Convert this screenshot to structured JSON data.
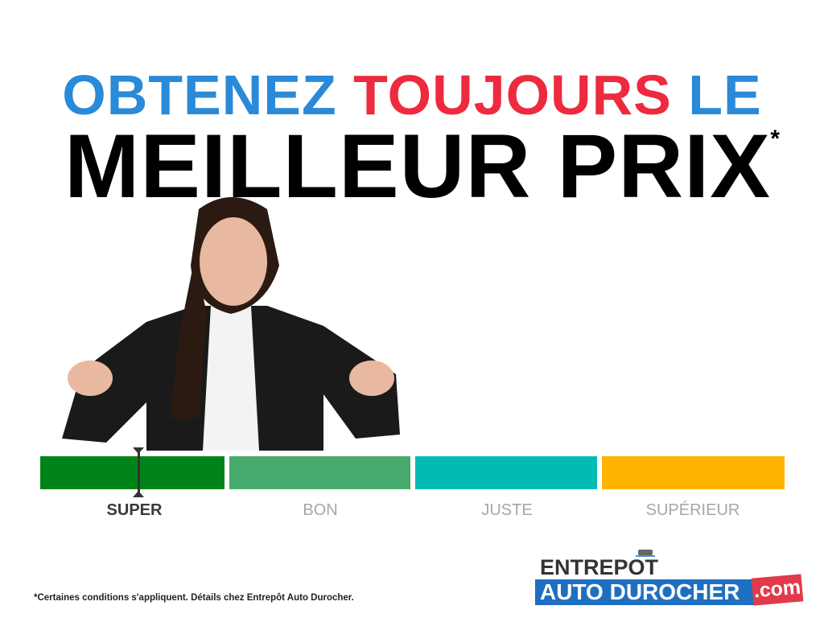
{
  "headline": {
    "line1_part1": "OBTENEZ",
    "line1_part2": "TOUJOURS",
    "line1_part3": "LE",
    "line2": "MEILLEUR PRIX",
    "asterisk": "*"
  },
  "colors": {
    "blue": "#2a8ad8",
    "red": "#ee2a3e",
    "super": "#00841a",
    "bon": "#46ab6c",
    "juste": "#00bcb4",
    "superieur": "#ffb400"
  },
  "price_scale": {
    "selected": "SUPER",
    "segments": [
      {
        "label": "SUPER",
        "color": "#00841a"
      },
      {
        "label": "BON",
        "color": "#46ab6c"
      },
      {
        "label": "JUSTE",
        "color": "#00bcb4"
      },
      {
        "label": "SUPÉRIEUR",
        "color": "#ffb400"
      }
    ]
  },
  "footer": {
    "disclaimer": "*Certaines conditions s'appliquent. Détails chez Entrepôt Auto Durocher."
  },
  "logo": {
    "line1": "ENTREPOT",
    "line2": "AUTO DUROCHER",
    "suffix": ".com"
  }
}
